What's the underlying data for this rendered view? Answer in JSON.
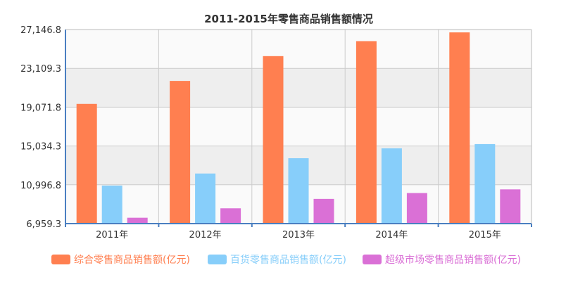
{
  "chart_data": {
    "type": "bar",
    "title": "2011-2015年零售商品销售额情况",
    "categories": [
      "2011年",
      "2012年",
      "2013年",
      "2014年",
      "2015年"
    ],
    "y_ticks": [
      "6,959.3",
      "10,996.8",
      "15,034.3",
      "19,071.8",
      "23,109.3",
      "27,146.8"
    ],
    "ylim": [
      6959.3,
      27146.8
    ],
    "grid": true,
    "legend_position": "bottom",
    "series": [
      {
        "name": "综合零售商品销售额(亿元)",
        "color": "#ff7f50",
        "values": [
          19410,
          21800,
          24380,
          25940,
          26850
        ]
      },
      {
        "name": "百货零售商品销售额(亿元)",
        "color": "#87cefa",
        "values": [
          10920,
          12170,
          13760,
          14790,
          15230
        ]
      },
      {
        "name": "超级市场零售商品销售额(亿元)",
        "color": "#da70d6",
        "values": [
          7570,
          8550,
          9530,
          10140,
          10520
        ]
      }
    ]
  }
}
